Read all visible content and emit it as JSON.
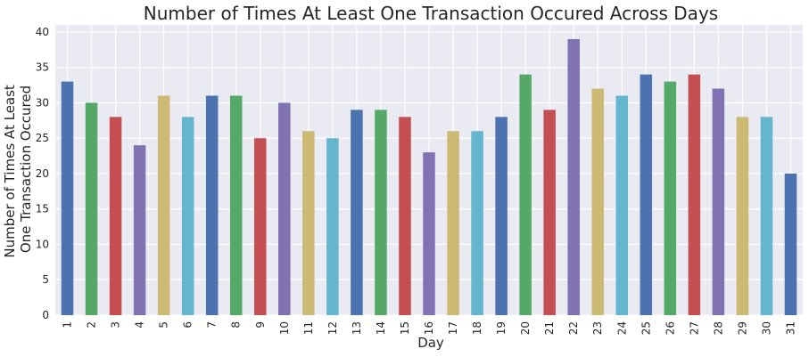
{
  "chart_data": {
    "type": "bar",
    "title": "Number of Times At Least One Transaction Occured Across Days",
    "xlabel": "Day",
    "ylabel_lines": [
      "Number of Times At Least",
      "One Transaction Occured"
    ],
    "categories": [
      "1",
      "2",
      "3",
      "4",
      "5",
      "6",
      "7",
      "8",
      "9",
      "10",
      "11",
      "12",
      "13",
      "14",
      "15",
      "16",
      "17",
      "18",
      "19",
      "20",
      "21",
      "22",
      "23",
      "24",
      "25",
      "26",
      "27",
      "28",
      "29",
      "30",
      "31"
    ],
    "values": [
      33,
      30,
      28,
      24,
      31,
      28,
      31,
      31,
      25,
      30,
      26,
      25,
      29,
      29,
      28,
      23,
      26,
      26,
      28,
      34,
      29,
      39,
      32,
      31,
      34,
      33,
      34,
      32,
      28,
      28,
      20
    ],
    "ylim": [
      0,
      41
    ],
    "yticks": [
      0,
      5,
      10,
      15,
      20,
      25,
      30,
      35,
      40
    ],
    "grid": true,
    "legend": "none",
    "background": "#eaeaf2",
    "palette": [
      "#4c72b0",
      "#55a868",
      "#c44e52",
      "#8172b2",
      "#ccb974",
      "#64b5cd"
    ]
  }
}
